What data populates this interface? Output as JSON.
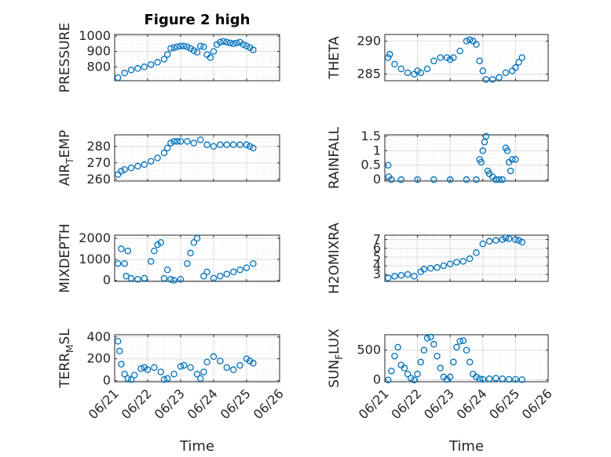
{
  "figure_title": "Figure 2 high",
  "marker_color": "#0072BD",
  "chart_data": [
    {
      "type": "scatter",
      "ylabel": "PRESSURE",
      "xlabel": "",
      "xlim": [
        0,
        5
      ],
      "ylim": [
        710,
        1010
      ],
      "yticks": [
        800,
        900,
        1000
      ],
      "ytick_labels": [
        "800",
        "900",
        "1000"
      ],
      "xticks": [
        0,
        1,
        2,
        3,
        4,
        5
      ],
      "xtick_labels": [],
      "x": [
        0.1,
        0.3,
        0.5,
        0.7,
        0.9,
        1.1,
        1.3,
        1.5,
        1.6,
        1.7,
        1.8,
        1.9,
        2.0,
        2.1,
        2.2,
        2.3,
        2.4,
        2.5,
        2.6,
        2.7,
        2.8,
        2.9,
        3.0,
        3.1,
        3.2,
        3.3,
        3.4,
        3.5,
        3.6,
        3.7,
        3.8,
        3.9,
        4.0,
        4.1,
        4.2
      ],
      "y": [
        730,
        760,
        780,
        790,
        800,
        815,
        830,
        850,
        880,
        920,
        925,
        930,
        935,
        935,
        930,
        920,
        905,
        895,
        935,
        930,
        880,
        860,
        900,
        945,
        960,
        965,
        960,
        955,
        950,
        955,
        960,
        945,
        935,
        925,
        910
      ]
    },
    {
      "type": "scatter",
      "ylabel": "THETA",
      "xlabel": "",
      "xlim": [
        0,
        5
      ],
      "ylim": [
        284,
        291
      ],
      "yticks": [
        285,
        290
      ],
      "ytick_labels": [
        "285",
        "290"
      ],
      "xticks": [
        0,
        1,
        2,
        3,
        4,
        5
      ],
      "xtick_labels": [],
      "x": [
        0.1,
        0.15,
        0.3,
        0.5,
        0.7,
        0.9,
        1.0,
        1.1,
        1.3,
        1.5,
        1.7,
        1.9,
        2.0,
        2.1,
        2.3,
        2.5,
        2.6,
        2.7,
        2.8,
        2.9,
        3.0,
        3.1,
        3.3,
        3.5,
        3.7,
        3.9,
        4.0,
        4.1,
        4.2
      ],
      "y": [
        287.5,
        288,
        286.5,
        285.8,
        285.2,
        285,
        285.5,
        285.2,
        285.8,
        287,
        287.5,
        287.5,
        287.2,
        287.5,
        288.5,
        290,
        290.2,
        290,
        289.5,
        287,
        285.5,
        284.2,
        284.2,
        284.5,
        285.2,
        285.5,
        286,
        286.8,
        287.5
      ]
    },
    {
      "type": "scatter",
      "ylabel": "AIR_TEMP",
      "xlabel": "",
      "xlim": [
        0,
        5
      ],
      "ylim": [
        259,
        287
      ],
      "yticks": [
        260,
        270,
        280
      ],
      "ytick_labels": [
        "260",
        "270",
        "280"
      ],
      "xticks": [
        0,
        1,
        2,
        3,
        4,
        5
      ],
      "xtick_labels": [],
      "x": [
        0.1,
        0.2,
        0.3,
        0.5,
        0.7,
        0.9,
        1.1,
        1.3,
        1.5,
        1.6,
        1.7,
        1.8,
        1.9,
        2.0,
        2.2,
        2.4,
        2.6,
        2.8,
        3.0,
        3.2,
        3.4,
        3.6,
        3.8,
        4.0,
        4.1,
        4.2
      ],
      "y": [
        263,
        265,
        266,
        267,
        268,
        269,
        271,
        273,
        276,
        279,
        282,
        283,
        283,
        283,
        283,
        282,
        284,
        281,
        280,
        281,
        281,
        281,
        281,
        281,
        280,
        279
      ]
    },
    {
      "type": "scatter",
      "ylabel": "RAINFALL",
      "xlabel": "",
      "xlim": [
        0,
        5
      ],
      "ylim": [
        -0.05,
        1.55
      ],
      "yticks": [
        0,
        0.5,
        1,
        1.5
      ],
      "ytick_labels": [
        "0",
        "0.5",
        "1",
        "1.5"
      ],
      "xticks": [
        0,
        1,
        2,
        3,
        4,
        5
      ],
      "xtick_labels": [],
      "x": [
        0.1,
        0.12,
        0.2,
        0.5,
        1.0,
        1.5,
        2.0,
        2.5,
        2.8,
        2.9,
        2.95,
        3.0,
        3.05,
        3.1,
        3.15,
        3.2,
        3.3,
        3.4,
        3.5,
        3.6,
        3.7,
        3.75,
        3.8,
        3.85,
        3.9,
        4.0
      ],
      "y": [
        0.5,
        0.1,
        0,
        0,
        0,
        0,
        0,
        0,
        0,
        0.7,
        0.6,
        1.0,
        1.3,
        1.5,
        0.3,
        0.2,
        0.1,
        0,
        0,
        0,
        1.1,
        1.0,
        0.6,
        0.3,
        0.7,
        0.7
      ]
    },
    {
      "type": "scatter",
      "ylabel": "MIXDEPTH",
      "xlabel": "",
      "xlim": [
        0,
        5
      ],
      "ylim": [
        -50,
        2150
      ],
      "yticks": [
        0,
        1000,
        2000
      ],
      "ytick_labels": [
        "0",
        "1000",
        "2000"
      ],
      "xticks": [
        0,
        1,
        2,
        3,
        4,
        5
      ],
      "xtick_labels": [],
      "x": [
        0.1,
        0.2,
        0.3,
        0.35,
        0.4,
        0.5,
        0.7,
        0.9,
        1.1,
        1.2,
        1.3,
        1.4,
        1.5,
        1.6,
        1.7,
        1.8,
        2.0,
        2.2,
        2.3,
        2.4,
        2.5,
        2.7,
        2.8,
        3.0,
        3.2,
        3.4,
        3.6,
        3.8,
        4.0,
        4.2
      ],
      "y": [
        800,
        1500,
        800,
        200,
        1400,
        100,
        50,
        100,
        900,
        1400,
        1700,
        1800,
        100,
        500,
        50,
        0,
        50,
        800,
        1300,
        1800,
        2000,
        200,
        400,
        100,
        200,
        300,
        400,
        500,
        600,
        800
      ]
    },
    {
      "type": "scatter",
      "ylabel": "H2OMIXRA",
      "xlabel": "",
      "xlim": [
        0,
        5
      ],
      "ylim": [
        2.2,
        7.5
      ],
      "yticks": [
        3,
        4,
        5,
        6,
        7
      ],
      "ytick_labels": [
        "3",
        "4",
        "5",
        "6",
        "7"
      ],
      "xticks": [
        0,
        1,
        2,
        3,
        4,
        5
      ],
      "xtick_labels": [],
      "x": [
        0.1,
        0.3,
        0.5,
        0.7,
        0.9,
        1.1,
        1.2,
        1.4,
        1.6,
        1.8,
        2.0,
        2.2,
        2.4,
        2.6,
        2.8,
        3.0,
        3.2,
        3.4,
        3.6,
        3.7,
        3.8,
        4.0,
        4.1,
        4.2
      ],
      "y": [
        2.6,
        2.8,
        2.9,
        3.0,
        2.8,
        3.3,
        3.6,
        3.7,
        3.8,
        4.0,
        4.2,
        4.4,
        4.5,
        4.8,
        5.5,
        6.5,
        6.8,
        6.9,
        7.0,
        7.2,
        7.1,
        7.0,
        6.9,
        6.7
      ]
    },
    {
      "type": "scatter",
      "ylabel": "TERR_MSL",
      "xlabel": "Time",
      "xlim": [
        0,
        5
      ],
      "ylim": [
        -10,
        420
      ],
      "yticks": [
        0,
        200,
        400
      ],
      "ytick_labels": [
        "0",
        "200",
        "400"
      ],
      "xticks": [
        0,
        1,
        2,
        3,
        4,
        5
      ],
      "xtick_labels": [
        "06/21",
        "06/22",
        "06/23",
        "06/24",
        "06/25",
        "06/26"
      ],
      "x": [
        0.1,
        0.15,
        0.2,
        0.3,
        0.4,
        0.5,
        0.6,
        0.8,
        0.9,
        1.0,
        1.2,
        1.4,
        1.5,
        1.6,
        1.8,
        2.0,
        2.1,
        2.3,
        2.5,
        2.6,
        2.7,
        2.8,
        3.0,
        3.2,
        3.4,
        3.6,
        3.8,
        4.0,
        4.1,
        4.2
      ],
      "y": [
        360,
        270,
        150,
        60,
        20,
        10,
        50,
        110,
        120,
        100,
        120,
        80,
        10,
        20,
        60,
        130,
        140,
        120,
        60,
        20,
        80,
        170,
        220,
        180,
        120,
        100,
        140,
        200,
        180,
        160
      ]
    },
    {
      "type": "scatter",
      "ylabel": "SUN_FLUX",
      "xlabel": "Time",
      "xlim": [
        0,
        5
      ],
      "ylim": [
        -30,
        760
      ],
      "yticks": [
        0,
        500
      ],
      "ytick_labels": [
        "0",
        "500"
      ],
      "xticks": [
        0,
        1,
        2,
        3,
        4,
        5
      ],
      "xtick_labels": [
        "06/21",
        "06/22",
        "06/23",
        "06/24",
        "06/25",
        "06/26"
      ],
      "x": [
        0.1,
        0.2,
        0.3,
        0.4,
        0.5,
        0.6,
        0.7,
        0.8,
        0.9,
        1.0,
        1.1,
        1.2,
        1.3,
        1.4,
        1.5,
        1.6,
        1.7,
        1.8,
        1.9,
        2.0,
        2.1,
        2.2,
        2.3,
        2.4,
        2.5,
        2.6,
        2.7,
        2.8,
        2.9,
        3.0,
        3.2,
        3.4,
        3.6,
        3.8,
        4.0,
        4.2
      ],
      "y": [
        0,
        150,
        400,
        550,
        250,
        200,
        100,
        30,
        0,
        100,
        300,
        500,
        700,
        720,
        600,
        400,
        200,
        50,
        10,
        50,
        300,
        550,
        650,
        660,
        500,
        300,
        100,
        50,
        20,
        10,
        20,
        30,
        20,
        10,
        10,
        5
      ]
    }
  ]
}
